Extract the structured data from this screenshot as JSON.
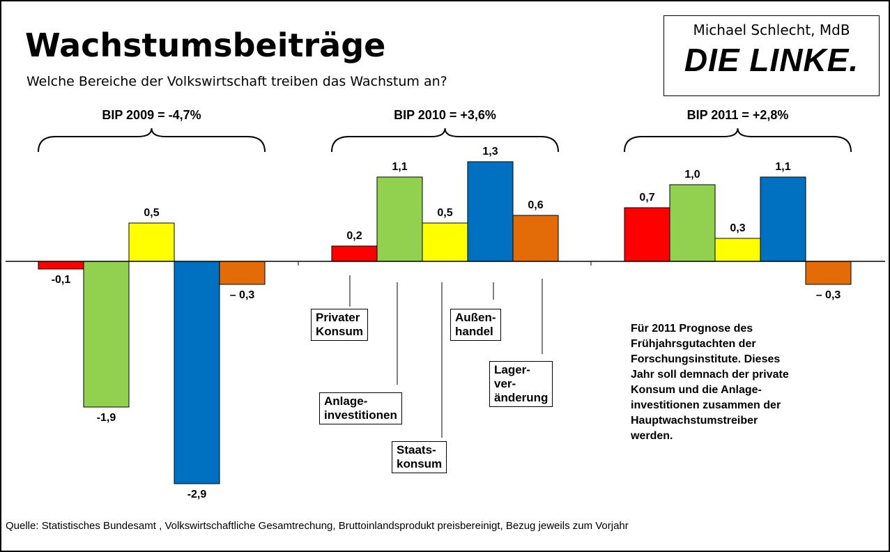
{
  "chart_data": {
    "type": "bar",
    "title": "Wachstumsbeiträge",
    "subtitle": "Welche Bereiche der Volkswirtschaft treiben das Wachstum an?",
    "categories": [
      "BIP 2009 = -4,7%",
      "BIP 2010 = +3,6%",
      "BIP 2011 = +2,8%"
    ],
    "series": [
      {
        "name": "Privater\nKonsum",
        "color": "#ff0000",
        "values": [
          -0.1,
          0.2,
          0.7
        ],
        "value_labels": [
          "-0,1",
          "0,2",
          "0,7"
        ]
      },
      {
        "name": "Anlage-\ninvestitionen",
        "color": "#92d050",
        "values": [
          -1.9,
          1.1,
          1.0
        ],
        "value_labels": [
          "-1,9",
          "1,1",
          "1,0"
        ]
      },
      {
        "name": "Staats-\nkonsum",
        "color": "#ffff00",
        "values": [
          0.5,
          0.5,
          0.3
        ],
        "value_labels": [
          "0,5",
          "0,5",
          "0,3"
        ]
      },
      {
        "name": "Außen-\nhandel",
        "color": "#0070c0",
        "values": [
          -2.9,
          1.3,
          1.1
        ],
        "value_labels": [
          "-2,9",
          "1,3",
          "1,1"
        ]
      },
      {
        "name": "Lager-\nver-\nänderung",
        "color": "#e36c09",
        "values": [
          -0.3,
          0.6,
          -0.3
        ],
        "value_labels": [
          "– 0,3",
          "0,6",
          "– 0,3"
        ]
      }
    ],
    "ylim": [
      -3,
      2
    ],
    "annotation": "Für 2011 Prognose des\nFrühjahrsgutachten der\nForschungsinstitute.  Dieses\nJahr soll demnach der private\nKonsum und die Anlage-\ninvestitionen zusammen der\nHauptwachstumstreiber\nwerden.",
    "source": "Quelle: Statistisches Bundesamt ,  Volkswirtschaftliche Gesamtrechung, Bruttoinlandsprodukt preisbereinigt, Bezug jeweils zum Vorjahr",
    "logo": {
      "author": "Michael Schlecht, MdB",
      "party": "DIE LINKE."
    }
  }
}
